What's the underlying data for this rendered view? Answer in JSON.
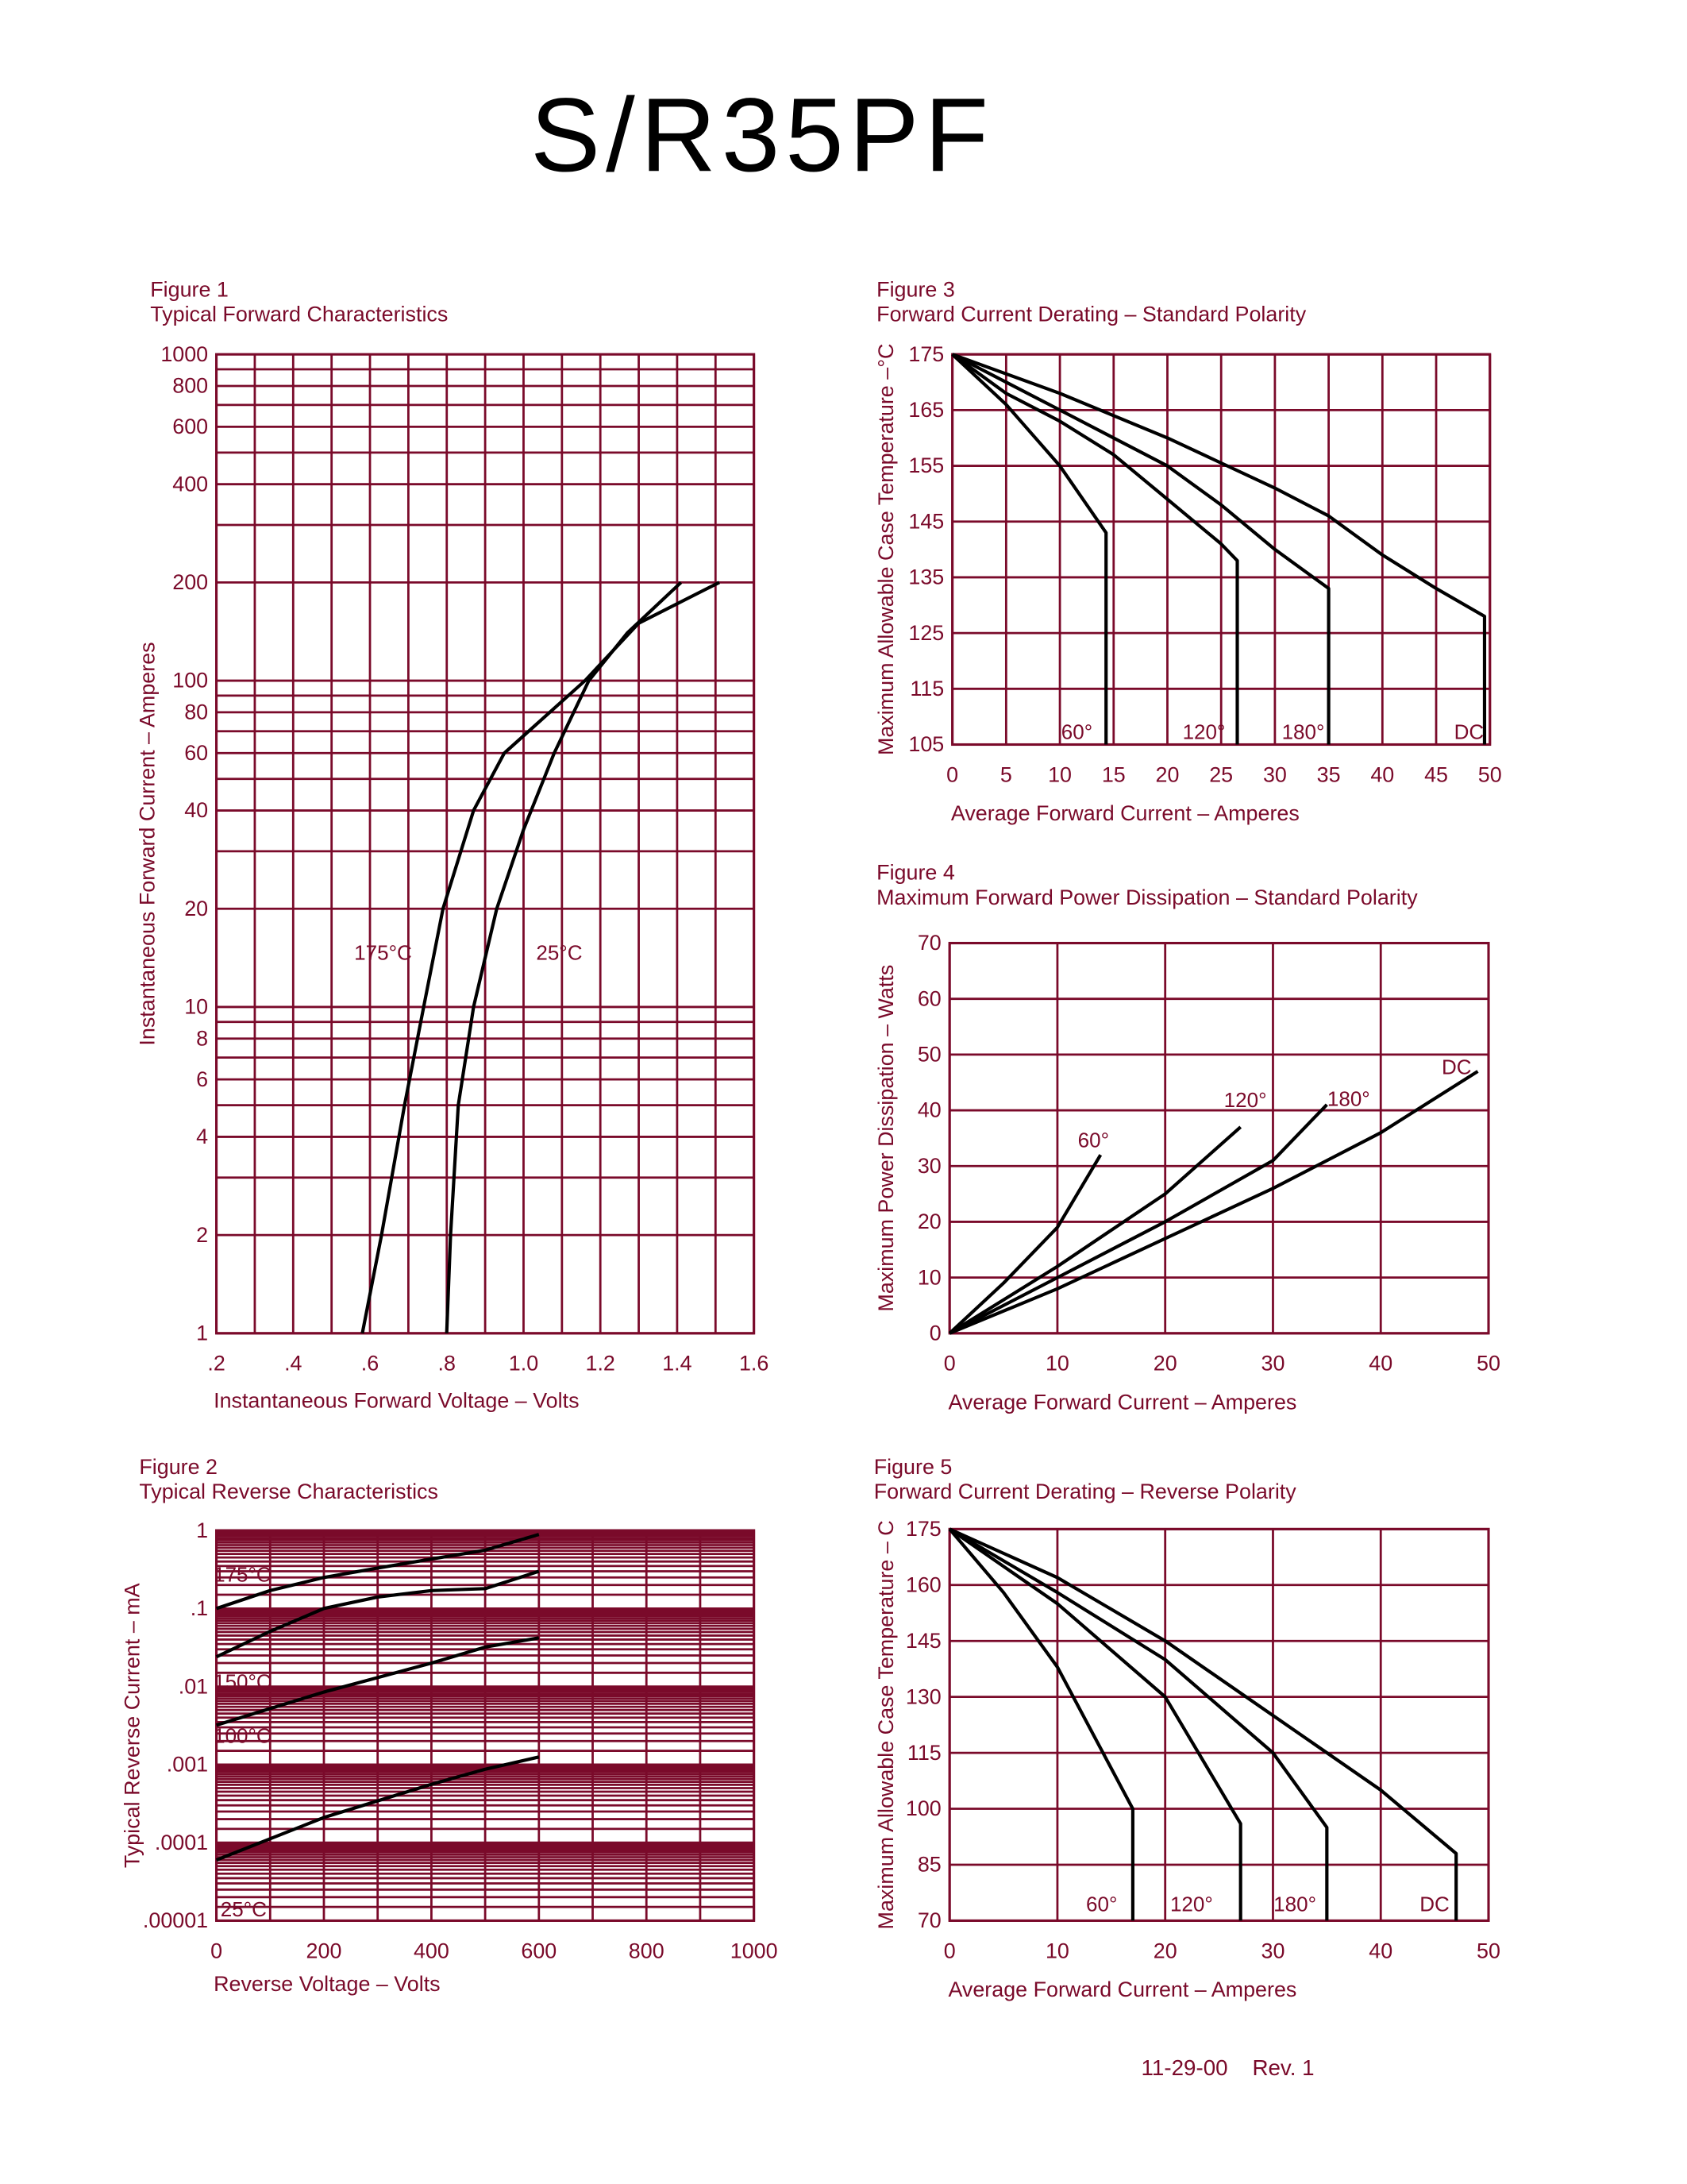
{
  "document": {
    "title": "S/R35PF",
    "footer": "11-29-00    Rev. 1"
  },
  "colors": {
    "grid": "#7a0a2a",
    "text": "#7a0a2a",
    "curves": "#000000"
  },
  "chart_data": [
    {
      "figure": "Figure 1",
      "title": "Typical Forward Characteristics",
      "type": "line",
      "xlabel": "Instantaneous Forward Voltage  –  Volts",
      "ylabel": "Instantaneous Forward Current  –  Amperes",
      "xlim": [
        0.2,
        1.6
      ],
      "ylim": [
        1,
        1000
      ],
      "yscale": "log",
      "grid": true,
      "xticks": [
        ".2",
        ".4",
        ".6",
        ".8",
        "1.0",
        "1.2",
        "1.4",
        "1.6"
      ],
      "xtick_values": [
        0.2,
        0.4,
        0.6,
        0.8,
        1.0,
        1.2,
        1.4,
        1.6
      ],
      "yticks": [
        "1",
        "2",
        "4",
        "6",
        "8",
        "10",
        "20",
        "40",
        "60",
        "80",
        "100",
        "200",
        "400",
        "600",
        "800",
        "1000"
      ],
      "ytick_values": [
        1,
        2,
        4,
        6,
        8,
        10,
        20,
        40,
        60,
        80,
        100,
        200,
        400,
        600,
        800,
        1000
      ],
      "series": [
        {
          "name": "175°C",
          "x": [
            0.58,
            0.63,
            0.69,
            0.74,
            0.79,
            0.87,
            0.95,
            1.16,
            1.3,
            1.51
          ],
          "y": [
            1,
            2,
            5,
            10,
            20,
            40,
            60,
            100,
            150,
            200
          ]
        },
        {
          "name": "25°C",
          "x": [
            0.8,
            0.81,
            0.83,
            0.87,
            0.93,
            1.0,
            1.08,
            1.17,
            1.27,
            1.41
          ],
          "y": [
            1,
            2,
            5,
            10,
            20,
            35,
            60,
            100,
            140,
            200
          ]
        }
      ]
    },
    {
      "figure": "Figure 2",
      "title": "Typical Reverse Characteristics",
      "type": "line",
      "xlabel": "Reverse  Voltage  –  Volts",
      "ylabel": "Typical  Reverse  Current  –  mA",
      "xlim": [
        0,
        1000
      ],
      "ylim": [
        1e-05,
        1
      ],
      "yscale": "log",
      "grid": true,
      "xticks": [
        "0",
        "200",
        "400",
        "600",
        "800",
        "1000"
      ],
      "xtick_values": [
        0,
        200,
        400,
        600,
        800,
        1000
      ],
      "yticks": [
        ".00001",
        ".0001",
        ".001",
        ".01",
        ".1",
        "1"
      ],
      "ytick_values": [
        1e-05,
        0.0001,
        0.001,
        0.01,
        0.1,
        1
      ],
      "series": [
        {
          "name": "175°C",
          "x": [
            0,
            100,
            200,
            300,
            400,
            500,
            600
          ],
          "y": [
            0.1,
            0.17,
            0.25,
            0.33,
            0.43,
            0.56,
            0.89
          ]
        },
        {
          "name": "150°C",
          "x": [
            0,
            100,
            200,
            300,
            400,
            500,
            600
          ],
          "y": [
            0.024,
            0.051,
            0.1,
            0.14,
            0.17,
            0.18,
            0.3
          ]
        },
        {
          "name": "100°C",
          "x": [
            0,
            200,
            400,
            500,
            600
          ],
          "y": [
            0.0032,
            0.0085,
            0.02,
            0.032,
            0.042
          ]
        },
        {
          "name": "25°C",
          "x": [
            0,
            200,
            400,
            500,
            600
          ],
          "y": [
            6e-05,
            0.00021,
            0.00056,
            0.00087,
            0.00125
          ]
        }
      ]
    },
    {
      "figure": "Figure 3",
      "title": "Forward Current Derating  –  Standard Polarity",
      "type": "line",
      "xlabel": "Average  Forward  Current  –  Amperes",
      "ylabel": "Maximum  Allowable  Case  Temperature  –°C",
      "xlim": [
        0,
        50
      ],
      "ylim": [
        105,
        175
      ],
      "grid": true,
      "xticks": [
        "0",
        "5",
        "10",
        "15",
        "20",
        "25",
        "30",
        "35",
        "40",
        "45",
        "50"
      ],
      "xtick_values": [
        0,
        5,
        10,
        15,
        20,
        25,
        30,
        35,
        40,
        45,
        50
      ],
      "yticks": [
        "105",
        "115",
        "125",
        "135",
        "145",
        "155",
        "165",
        "175"
      ],
      "ytick_values": [
        105,
        115,
        125,
        135,
        145,
        155,
        165,
        175
      ],
      "series": [
        {
          "name": "60°",
          "x": [
            0,
            5,
            10,
            14.3,
            14.3
          ],
          "y": [
            175,
            166,
            155,
            143,
            105
          ]
        },
        {
          "name": "120°",
          "x": [
            0,
            5,
            10,
            15,
            20,
            25,
            26.5,
            26.5
          ],
          "y": [
            175,
            168,
            163,
            157,
            149,
            141,
            138,
            105
          ]
        },
        {
          "name": "180°",
          "x": [
            0,
            10,
            20,
            25,
            30,
            35,
            35
          ],
          "y": [
            175,
            165,
            155,
            148,
            140,
            133,
            105
          ]
        },
        {
          "name": "DC",
          "x": [
            0,
            10,
            20,
            30,
            35,
            40,
            45,
            49.5,
            49.5
          ],
          "y": [
            175,
            168,
            160,
            151,
            146,
            139,
            133,
            128,
            105
          ]
        }
      ]
    },
    {
      "figure": "Figure 4",
      "title": "Maximum  Forward  Power  Dissipation  –  Standard  Polarity",
      "type": "line",
      "xlabel": "Average  Forward  Current  –  Amperes",
      "ylabel": "Maximum  Power  Dissipation  –  Watts",
      "xlim": [
        0,
        50
      ],
      "ylim": [
        0,
        70
      ],
      "grid": true,
      "xticks": [
        "0",
        "10",
        "20",
        "30",
        "40",
        "50"
      ],
      "xtick_values": [
        0,
        10,
        20,
        30,
        40,
        50
      ],
      "yticks": [
        "0",
        "10",
        "20",
        "30",
        "40",
        "50",
        "60",
        "70"
      ],
      "ytick_values": [
        0,
        10,
        20,
        30,
        40,
        50,
        60,
        70
      ],
      "series": [
        {
          "name": "60°",
          "x": [
            0,
            5,
            10,
            14
          ],
          "y": [
            0,
            9,
            19,
            32
          ]
        },
        {
          "name": "120°",
          "x": [
            0,
            10,
            20,
            27
          ],
          "y": [
            0,
            12,
            25,
            37
          ]
        },
        {
          "name": "180°",
          "x": [
            0,
            10,
            20,
            30,
            35
          ],
          "y": [
            0,
            10,
            20,
            31,
            41
          ]
        },
        {
          "name": "DC",
          "x": [
            0,
            10,
            20,
            30,
            40,
            49
          ],
          "y": [
            0,
            8,
            17,
            26,
            36,
            47
          ]
        }
      ]
    },
    {
      "figure": "Figure 5",
      "title": "Forward Current Derating  –  Reverse Polarity",
      "type": "line",
      "xlabel": "Average  Forward  Current  –  Amperes",
      "ylabel": "Maximum  Allowable  Case  Temperature  –  C",
      "xlim": [
        0,
        50
      ],
      "ylim": [
        70,
        175
      ],
      "grid": true,
      "xticks": [
        "0",
        "10",
        "20",
        "30",
        "40",
        "50"
      ],
      "xtick_values": [
        0,
        10,
        20,
        30,
        40,
        50
      ],
      "yticks": [
        "70",
        "85",
        "100",
        "115",
        "130",
        "145",
        "160",
        "175"
      ],
      "ytick_values": [
        70,
        85,
        100,
        115,
        130,
        145,
        160,
        175
      ],
      "series": [
        {
          "name": "60°",
          "x": [
            0,
            5,
            10,
            17,
            17
          ],
          "y": [
            175,
            158,
            138,
            100,
            70
          ]
        },
        {
          "name": "120°",
          "x": [
            0,
            10,
            20,
            27,
            27
          ],
          "y": [
            175,
            155,
            130,
            96,
            70
          ]
        },
        {
          "name": "180°",
          "x": [
            0,
            10,
            20,
            30,
            35,
            35
          ],
          "y": [
            175,
            158,
            140,
            115,
            95,
            70
          ]
        },
        {
          "name": "DC",
          "x": [
            0,
            10,
            20,
            30,
            40,
            47,
            47
          ],
          "y": [
            175,
            162,
            145,
            125,
            105,
            88,
            70
          ]
        }
      ]
    }
  ]
}
